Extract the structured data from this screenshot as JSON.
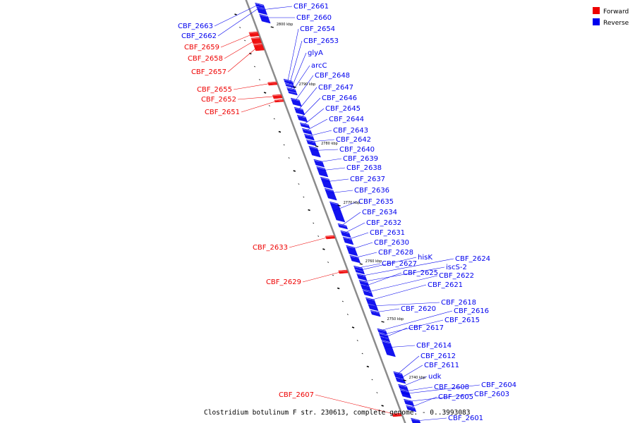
{
  "caption": "Clostridium botulinum F str. 230613, complete genome. - 0..3993083",
  "legend": [
    {
      "label": "Forward",
      "color": "#ee0000"
    },
    {
      "label": "Reverse",
      "color": "#0000ee"
    }
  ],
  "colors": {
    "forward": "#ee0000",
    "reverse": "#0000ee",
    "backbone": "#8c8c8c"
  },
  "ticks": [
    "2800 kbp",
    "2790 kbp",
    "2780 kbp",
    "2770 kbp",
    "2760 kbp",
    "2750 kbp",
    "2740 kbp"
  ],
  "genes": [
    {
      "name": "CBF_2663",
      "strand": "forward-side-left",
      "color": "reverse"
    },
    {
      "name": "CBF_2662",
      "color": "reverse"
    },
    {
      "name": "CBF_2661",
      "color": "reverse"
    },
    {
      "name": "CBF_2660",
      "color": "reverse"
    },
    {
      "name": "CBF_2659",
      "color": "forward"
    },
    {
      "name": "CBF_2658",
      "color": "forward"
    },
    {
      "name": "CBF_2657",
      "color": "forward"
    },
    {
      "name": "CBF_2654",
      "color": "reverse"
    },
    {
      "name": "CBF_2653",
      "color": "reverse"
    },
    {
      "name": "glyA",
      "color": "reverse"
    },
    {
      "name": "arcC",
      "color": "reverse"
    },
    {
      "name": "CBF_2648",
      "color": "reverse"
    },
    {
      "name": "CBF_2655",
      "color": "forward"
    },
    {
      "name": "CBF_2652",
      "color": "forward"
    },
    {
      "name": "CBF_2651",
      "color": "forward"
    },
    {
      "name": "CBF_2647",
      "color": "reverse"
    },
    {
      "name": "CBF_2646",
      "color": "reverse"
    },
    {
      "name": "CBF_2645",
      "color": "reverse"
    },
    {
      "name": "CBF_2644",
      "color": "reverse"
    },
    {
      "name": "CBF_2643",
      "color": "reverse"
    },
    {
      "name": "CBF_2642",
      "color": "reverse"
    },
    {
      "name": "CBF_2640",
      "color": "reverse"
    },
    {
      "name": "CBF_2639",
      "color": "reverse"
    },
    {
      "name": "CBF_2638",
      "color": "reverse"
    },
    {
      "name": "CBF_2637",
      "color": "reverse"
    },
    {
      "name": "CBF_2636",
      "color": "reverse"
    },
    {
      "name": "CBF_2635",
      "color": "reverse"
    },
    {
      "name": "CBF_2634",
      "color": "reverse"
    },
    {
      "name": "CBF_2632",
      "color": "reverse"
    },
    {
      "name": "CBF_2631",
      "color": "reverse"
    },
    {
      "name": "CBF_2630",
      "color": "reverse"
    },
    {
      "name": "CBF_2633",
      "color": "forward"
    },
    {
      "name": "CBF_2628",
      "color": "reverse"
    },
    {
      "name": "CBF_2627",
      "color": "reverse"
    },
    {
      "name": "hisK",
      "color": "reverse"
    },
    {
      "name": "CBF_2624",
      "color": "reverse"
    },
    {
      "name": "iscS-2",
      "color": "reverse"
    },
    {
      "name": "CBF_2625",
      "color": "reverse"
    },
    {
      "name": "CBF_2622",
      "color": "reverse"
    },
    {
      "name": "CBF_2621",
      "color": "reverse"
    },
    {
      "name": "CBF_2629",
      "color": "forward"
    },
    {
      "name": "CBF_2618",
      "color": "reverse"
    },
    {
      "name": "CBF_2616",
      "color": "reverse"
    },
    {
      "name": "CBF_2620",
      "color": "reverse"
    },
    {
      "name": "CBF_2615",
      "color": "reverse"
    },
    {
      "name": "CBF_2617",
      "color": "reverse"
    },
    {
      "name": "CBF_2614",
      "color": "reverse"
    },
    {
      "name": "CBF_2612",
      "color": "reverse"
    },
    {
      "name": "CBF_2611",
      "color": "reverse"
    },
    {
      "name": "udk",
      "color": "reverse"
    },
    {
      "name": "CBF_2604",
      "color": "reverse"
    },
    {
      "name": "CBF_2608",
      "color": "reverse"
    },
    {
      "name": "CBF_2603",
      "color": "reverse"
    },
    {
      "name": "CBF_2605",
      "color": "reverse"
    },
    {
      "name": "CBF_2607",
      "color": "forward"
    },
    {
      "name": "CBF_2601",
      "color": "reverse"
    }
  ]
}
